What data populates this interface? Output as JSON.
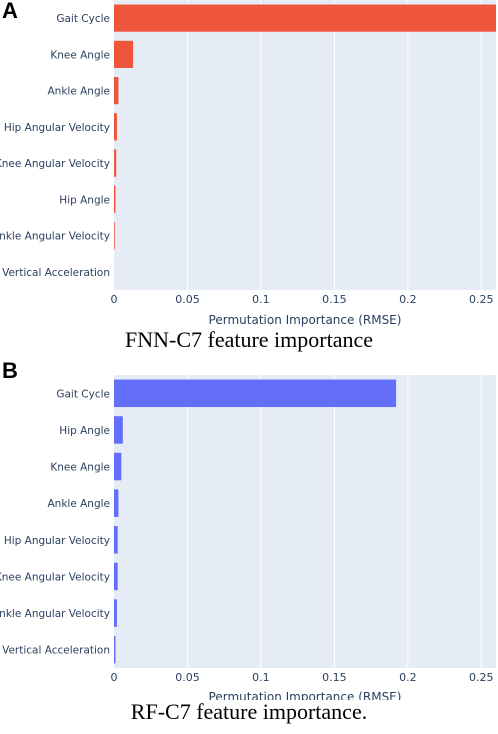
{
  "panels": [
    {
      "letter": "A",
      "caption": "FNN-C7 feature importance"
    },
    {
      "letter": "B",
      "caption": "RF-C7 feature importance."
    }
  ],
  "chart_data": [
    {
      "type": "bar",
      "orientation": "horizontal",
      "xlabel": "Permutation Importance (RMSE)",
      "xlim": [
        0,
        0.26
      ],
      "xticks": [
        0,
        0.05,
        0.1,
        0.15,
        0.2,
        0.25
      ],
      "xtick_labels": [
        "0",
        "0.05",
        "0.1",
        "0.15",
        "0.2",
        "0.25"
      ],
      "grid": true,
      "color": "#ef553b",
      "background": "#e5ecf6",
      "categories": [
        "Gait Cycle",
        "Knee Angle",
        "Ankle Angle",
        "Hip Angular Velocity",
        "Knee Angular Velocity",
        "Hip Angle",
        "Ankle Angular Velocity",
        "Vertical Acceleration"
      ],
      "values": [
        0.26,
        0.013,
        0.003,
        0.002,
        0.0015,
        0.001,
        0.0005,
        0.0
      ]
    },
    {
      "type": "bar",
      "orientation": "horizontal",
      "xlabel": "Permutation Importance (RMSE)",
      "xlim": [
        0,
        0.26
      ],
      "xticks": [
        0,
        0.05,
        0.1,
        0.15,
        0.2,
        0.25
      ],
      "xtick_labels": [
        "0",
        "0.05",
        "0.1",
        "0.15",
        "0.2",
        "0.25"
      ],
      "grid": true,
      "color": "#636efa",
      "background": "#e5ecf6",
      "categories": [
        "Gait Cycle",
        "Hip Angle",
        "Knee Angle",
        "Ankle Angle",
        "Hip Angular Velocity",
        "Knee Angular Velocity",
        "Ankle Angular Velocity",
        "Vertical Acceleration"
      ],
      "values": [
        0.192,
        0.006,
        0.005,
        0.003,
        0.0025,
        0.0025,
        0.002,
        0.001
      ]
    }
  ]
}
